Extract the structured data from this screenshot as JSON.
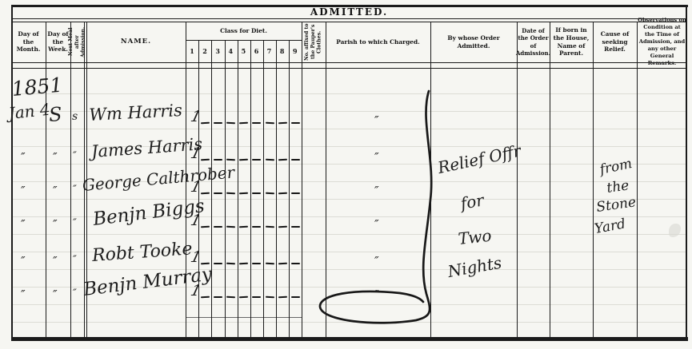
{
  "title": "ADMITTED.",
  "columns": {
    "day_month": "Day of the Month.",
    "day_week": "Day of the Week.",
    "next_meal": "Next Meal after Admission.",
    "name": "NAME.",
    "diet": "Class for Diet.",
    "diet_numbers": [
      "1",
      "2",
      "3",
      "4",
      "5",
      "6",
      "7",
      "8",
      "9"
    ],
    "no_affixed": "No. affixed to the Pauper's Clothes.",
    "parish": "Parish to which Charged.",
    "order": "By whose Order Admitted.",
    "date_order": "Date of the Order of Admission.",
    "born": "If born in the House, Name of Parent.",
    "cause": "Cause of seeking Relief.",
    "observations": "Observations on Condition at the Time of Admission, and any other General Remarks."
  },
  "entries": {
    "year": "1851",
    "rows": [
      {
        "day_month": "Jan 4",
        "day_week": "S",
        "next_meal": "s",
        "name": "Wm Harris",
        "diet_class": "1",
        "parish_ditto": "″"
      },
      {
        "day_month": "″",
        "day_week": "″",
        "next_meal": "″",
        "name": "James Harris",
        "diet_class": "1",
        "parish_ditto": "″"
      },
      {
        "day_month": "″",
        "day_week": "″",
        "next_meal": "″",
        "name": "George Calthrober",
        "diet_class": "1",
        "parish_ditto": "″"
      },
      {
        "day_month": "″",
        "day_week": "″",
        "next_meal": "″",
        "name": "Benjn Biggs",
        "diet_class": "1",
        "parish_ditto": "″"
      },
      {
        "day_month": "″",
        "day_week": "″",
        "next_meal": "″",
        "name": "Robt Tooke",
        "diet_class": "1",
        "parish_ditto": "″"
      },
      {
        "day_month": "″",
        "day_week": "″",
        "next_meal": "″",
        "name": "Benjn Murray",
        "diet_class": "1",
        "parish_ditto": "″"
      }
    ],
    "order_note": [
      "Relief Offr",
      "for",
      "Two",
      "Nights"
    ],
    "cause_note": [
      "from",
      "the",
      "Stone",
      "Yard"
    ]
  },
  "colors": {
    "ink": "#1d1d1d",
    "paper": "#f6f6f2",
    "faint_rule": "#dcdcd5"
  }
}
